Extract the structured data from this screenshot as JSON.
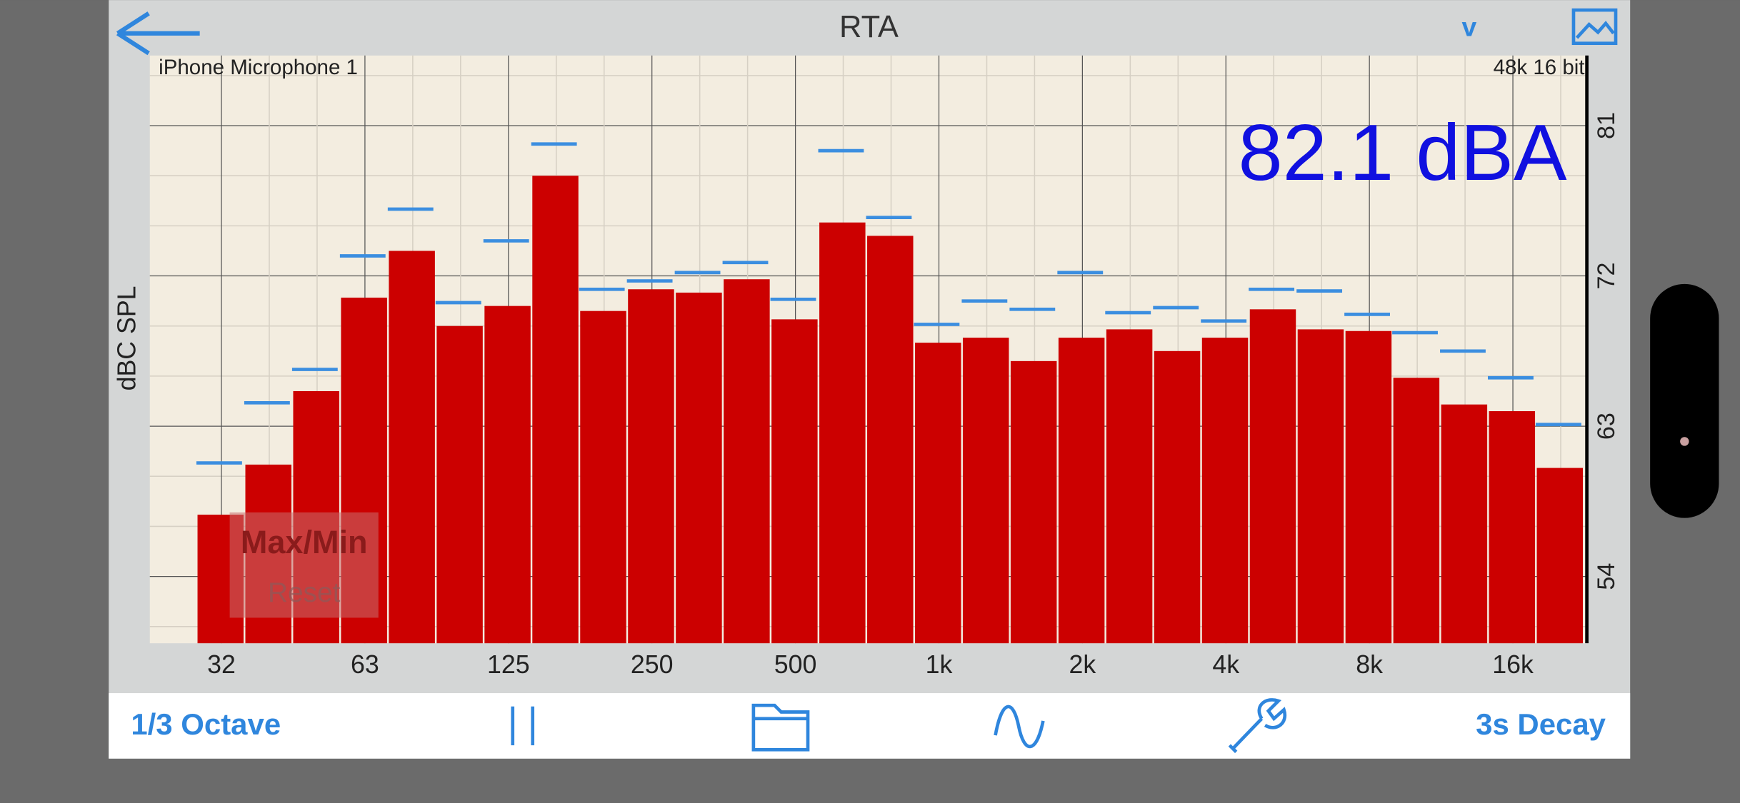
{
  "header": {
    "title": "RTA",
    "menu": "v"
  },
  "chart_data": {
    "type": "bar",
    "device": "iPhone Microphone 1",
    "format": "48k 16 bit",
    "level": "82.1 dBA",
    "ylabel": "dBC SPL",
    "categories": [
      "32",
      null,
      null,
      "63",
      null,
      null,
      "125",
      null,
      null,
      "250",
      null,
      null,
      "500",
      null,
      null,
      "1k",
      null,
      null,
      "2k",
      null,
      null,
      "4k",
      null,
      null,
      "8k",
      null,
      null,
      "16k",
      null
    ],
    "series": [
      {
        "color": "#cc0000",
        "values": [
          57.7,
          60.7,
          65.1,
          70.7,
          73.5,
          69.0,
          70.2,
          78.0,
          69.9,
          71.2,
          71.0,
          71.8,
          69.4,
          75.2,
          74.4,
          68.0,
          68.3,
          66.9,
          68.3,
          68.8,
          67.5,
          68.3,
          70.0,
          68.8,
          68.7,
          65.9,
          64.3,
          63.9,
          60.5
        ]
      },
      {
        "color": "#3b8ee0",
        "style": "dash",
        "values": [
          60.8,
          64.4,
          66.4,
          73.2,
          76.0,
          70.4,
          74.1,
          79.9,
          71.2,
          71.7,
          72.2,
          72.8,
          70.6,
          79.5,
          75.5,
          69.1,
          70.5,
          70.0,
          72.2,
          69.8,
          70.1,
          69.3,
          71.2,
          71.1,
          69.7,
          68.6,
          67.5,
          65.9,
          63.1
        ]
      }
    ],
    "ylim": [
      50,
      85.2
    ],
    "yticks": [
      54,
      63,
      72,
      81
    ],
    "yminorticks": [
      51,
      57,
      60,
      66,
      69,
      75,
      78,
      84
    ],
    "grid": true,
    "button": {
      "label": "Max/Min",
      "sublabel": "Reset"
    }
  },
  "toolbar": {
    "left": "1/3 Octave",
    "right": "3s Decay"
  }
}
